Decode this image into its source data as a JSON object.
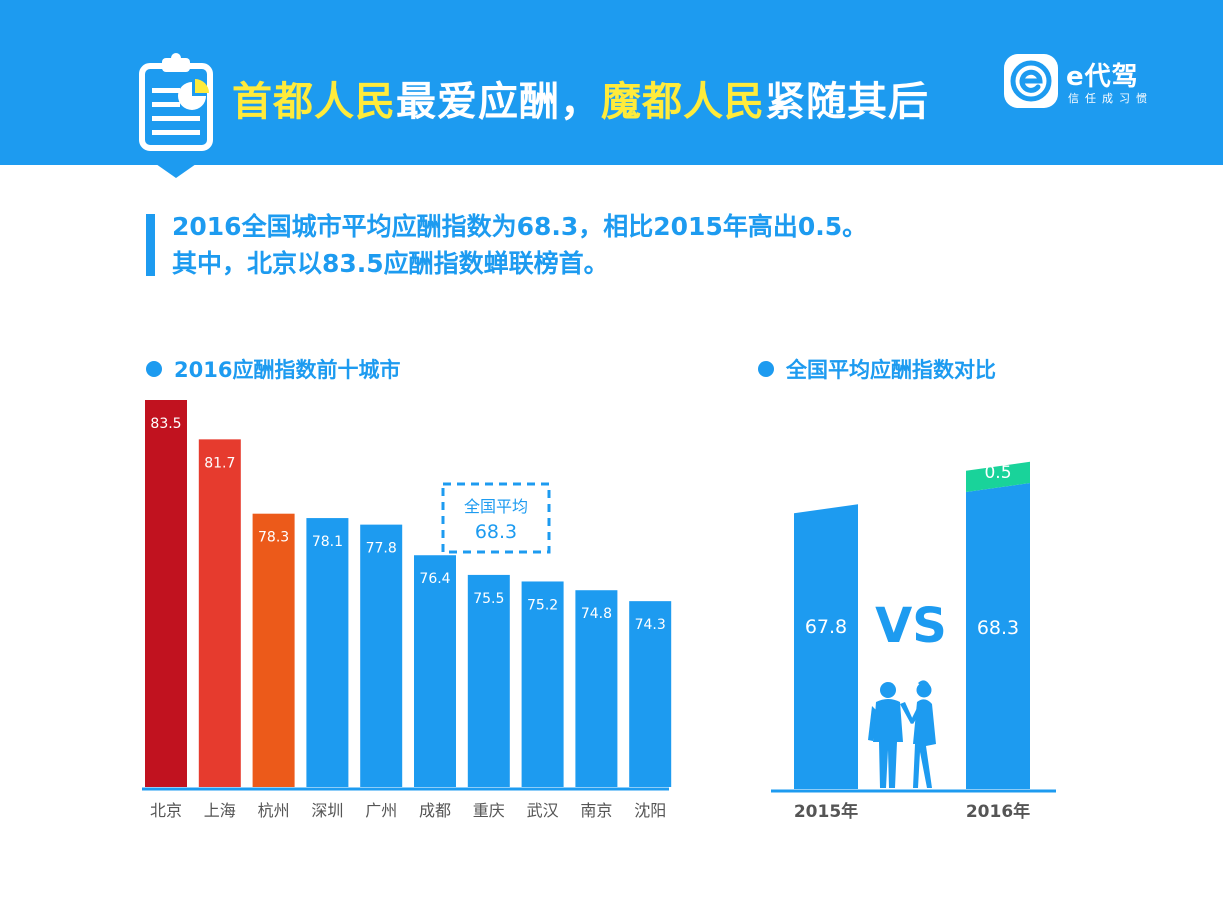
{
  "header": {
    "title_parts": [
      {
        "text": "首都人民",
        "highlight": true
      },
      {
        "text": "最爱应酬，",
        "highlight": false
      },
      {
        "text": "魔都人民",
        "highlight": true
      },
      {
        "text": "紧随其后",
        "highlight": false
      }
    ],
    "brand_name": "e代驾",
    "brand_slogan": "信任成习惯"
  },
  "summary": {
    "line1": "2016全国城市平均应酬指数为68.3，相比2015年高出0.5。",
    "line2": "其中，北京以83.5应酬指数蝉联榜首。"
  },
  "colors": {
    "accent": "#1d9bf0",
    "highlight": "#ffeb3b",
    "rank1": "#c1121f",
    "rank2": "#e63b2e",
    "rank3": "#ec5a1a",
    "diff": "#19d39a"
  },
  "chart_data": [
    {
      "type": "bar",
      "title": "2016应酬指数前十城市",
      "categories": [
        "北京",
        "上海",
        "杭州",
        "深圳",
        "广州",
        "成都",
        "重庆",
        "武汉",
        "南京",
        "沈阳"
      ],
      "values": [
        83.5,
        81.7,
        78.3,
        78.1,
        77.8,
        76.4,
        75.5,
        75.2,
        74.8,
        74.3
      ],
      "bar_colors": [
        "#c1121f",
        "#e63b2e",
        "#ec5a1a",
        "#1d9bf0",
        "#1d9bf0",
        "#1d9bf0",
        "#1d9bf0",
        "#1d9bf0",
        "#1d9bf0",
        "#1d9bf0"
      ],
      "annotation": {
        "label": "全国平均",
        "value": "68.3"
      }
    },
    {
      "type": "bar",
      "title": "全国平均应酬指数对比",
      "categories": [
        "2015年",
        "2016年"
      ],
      "values": [
        67.8,
        68.3
      ],
      "value_labels": [
        "67.8",
        "68.3"
      ],
      "difference_label": "0.5",
      "vs_label": "VS"
    }
  ]
}
